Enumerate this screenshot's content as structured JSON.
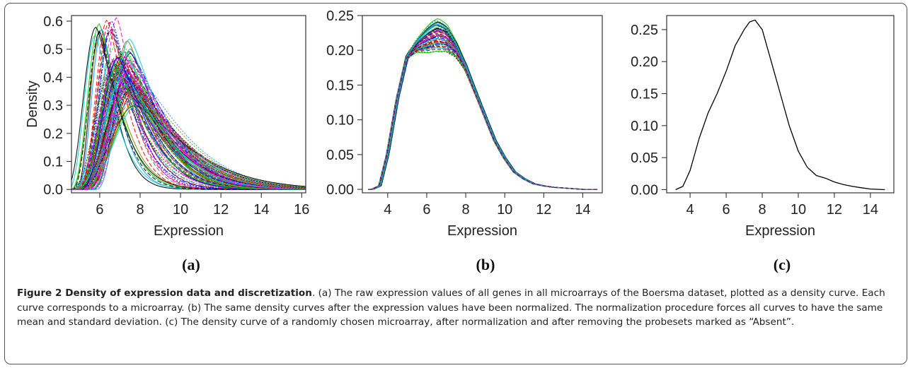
{
  "caption": {
    "title": "Figure 2 Density of expression data and discretization",
    "text": ". (a) The raw expression values of all genes in all microarrays of the Boersma dataset, plotted as a density curve. Each curve corresponds to a microarray. (b) The same density curves after the expression values have been normalized. The normalization procedure forces all curves to have the same mean and standard deviation. (c) The density curve of a randomly chosen microarray, after normalization and after removing the probesets marked as “Absent”."
  },
  "chart_data": [
    {
      "type": "line",
      "panel_label": "(a)",
      "xlabel": "Expression",
      "ylabel": "Density",
      "xlim": [
        4.6,
        16.2
      ],
      "ylim": [
        -0.012,
        0.62
      ],
      "xticks": [
        6,
        8,
        10,
        12,
        14,
        16
      ],
      "yticks": [
        0.0,
        0.1,
        0.2,
        0.3,
        0.4,
        0.5,
        0.6
      ],
      "ytick_labels": [
        "0.0",
        "0.1",
        "0.2",
        "0.3",
        "0.4",
        "0.5",
        "0.6"
      ],
      "grid": false,
      "legend": "none",
      "note_series": "many overlapping curves, one per microarray",
      "series_colors": [
        "#000000",
        "#ff0000",
        "#00cd00",
        "#0000ff",
        "#00d5d5",
        "#ff00ff",
        "#8a8a00",
        "#707070",
        "#1e90ff",
        "#8b0000"
      ],
      "curve_params": [
        {
          "peak": 6.0,
          "height": 0.56,
          "width": 0.45
        },
        {
          "peak": 6.6,
          "height": 0.6,
          "width": 0.5
        },
        {
          "peak": 7.0,
          "height": 0.48,
          "width": 0.75
        },
        {
          "peak": 7.1,
          "height": 0.45,
          "width": 0.8
        },
        {
          "peak": 7.3,
          "height": 0.5,
          "width": 0.7
        },
        {
          "peak": 7.4,
          "height": 0.42,
          "width": 0.85
        },
        {
          "peak": 7.5,
          "height": 0.38,
          "width": 0.95
        },
        {
          "peak": 7.6,
          "height": 0.35,
          "width": 1.0
        },
        {
          "peak": 7.2,
          "height": 0.4,
          "width": 0.9
        },
        {
          "peak": 7.0,
          "height": 0.44,
          "width": 0.7
        },
        {
          "peak": 7.7,
          "height": 0.37,
          "width": 1.05
        },
        {
          "peak": 6.9,
          "height": 0.47,
          "width": 0.65
        },
        {
          "peak": 7.8,
          "height": 0.33,
          "width": 1.1
        },
        {
          "peak": 7.3,
          "height": 0.36,
          "width": 0.95
        },
        {
          "peak": 6.8,
          "height": 0.43,
          "width": 0.7
        },
        {
          "peak": 7.5,
          "height": 0.46,
          "width": 0.8
        }
      ]
    },
    {
      "type": "line",
      "panel_label": "(b)",
      "xlabel": "Expression",
      "ylabel": "",
      "xlim": [
        2.7,
        15.0
      ],
      "ylim": [
        -0.005,
        0.25
      ],
      "xticks": [
        4,
        6,
        8,
        10,
        12,
        14
      ],
      "yticks": [
        0.0,
        0.05,
        0.1,
        0.15,
        0.2,
        0.25
      ],
      "ytick_labels": [
        "0.00",
        "0.05",
        "0.10",
        "0.15",
        "0.20",
        "0.25"
      ],
      "grid": false,
      "legend": "none",
      "note_series": "many overlapping normalized curves",
      "series_colors": [
        "#000000",
        "#ff0000",
        "#00cd00",
        "#0000ff",
        "#00d5d5",
        "#ff00ff",
        "#8a8a00",
        "#707070",
        "#1e90ff",
        "#8b0000"
      ],
      "base_curve": {
        "x": [
          3.2,
          3.6,
          4.0,
          4.5,
          5.0,
          5.5,
          6.0,
          6.5,
          7.0,
          7.5,
          8.0,
          8.5,
          9.0,
          9.5,
          10.0,
          10.5,
          11.0,
          11.5,
          12.0,
          12.5,
          13.0,
          13.5,
          14.0,
          14.5
        ],
        "y": [
          0.0,
          0.005,
          0.05,
          0.13,
          0.19,
          0.205,
          0.212,
          0.218,
          0.215,
          0.2,
          0.175,
          0.14,
          0.105,
          0.07,
          0.045,
          0.025,
          0.015,
          0.008,
          0.005,
          0.003,
          0.002,
          0.001,
          0.0,
          0.0
        ]
      },
      "peak_variations": [
        0.0,
        0.006,
        -0.004,
        0.01,
        0.014,
        -0.008,
        0.018,
        -0.012,
        0.022,
        0.008,
        -0.015,
        0.012,
        0.025,
        -0.006
      ]
    },
    {
      "type": "line",
      "panel_label": "(c)",
      "xlabel": "Expression",
      "ylabel": "",
      "xlim": [
        2.7,
        15.3
      ],
      "ylim": [
        -0.005,
        0.272
      ],
      "xticks": [
        4,
        6,
        8,
        10,
        12,
        14
      ],
      "yticks": [
        0.0,
        0.05,
        0.1,
        0.15,
        0.2,
        0.25
      ],
      "ytick_labels": [
        "0.00",
        "0.05",
        "0.10",
        "0.15",
        "0.20",
        "0.25"
      ],
      "grid": false,
      "legend": "none",
      "series": [
        {
          "color": "#000000",
          "x": [
            3.2,
            3.6,
            4.0,
            4.5,
            5.0,
            5.5,
            6.0,
            6.5,
            7.0,
            7.3,
            7.6,
            8.0,
            8.5,
            9.0,
            9.5,
            10.0,
            10.5,
            11.0,
            11.5,
            12.0,
            12.5,
            13.0,
            13.5,
            14.0,
            14.8
          ],
          "y": [
            0.0,
            0.005,
            0.03,
            0.08,
            0.12,
            0.15,
            0.185,
            0.225,
            0.25,
            0.262,
            0.265,
            0.25,
            0.2,
            0.15,
            0.1,
            0.06,
            0.035,
            0.022,
            0.018,
            0.012,
            0.008,
            0.005,
            0.003,
            0.001,
            0.0
          ]
        }
      ]
    }
  ]
}
